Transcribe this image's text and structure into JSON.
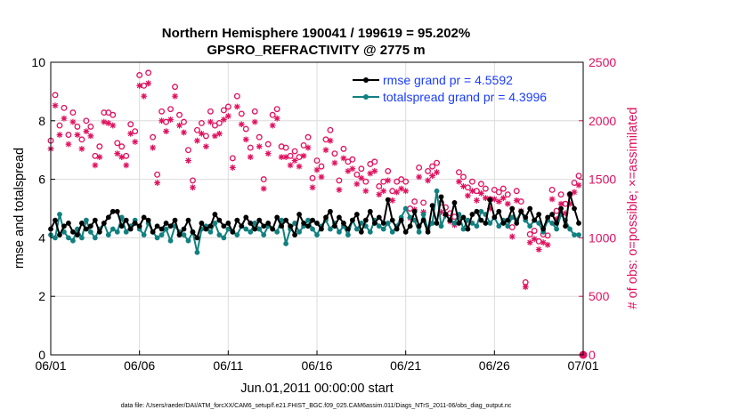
{
  "chart_data": {
    "type": "line",
    "title_line1": "Northern Hemisphere 190041 / 199619 = 95.202%",
    "title_line2": "GPSRO_REFRACTIVITY @ 2775 m",
    "xlabel": "Jun.01,2011 00:00:00 start",
    "ylabel_left": "rmse and totalspread",
    "ylabel_right": "# of obs: o=possible; ×=assimilated",
    "footnote": "data file: /Users/raeder/DAI/ATM_forcXX/CAM6_setup/f.e21.FHIST_BGC.f09_025.CAM6assim.011/Diags_NTrS_2011-06/obs_diag_output.nc",
    "x_range_days": [
      0,
      30
    ],
    "x_tick_labels": [
      "06/01",
      "06/06",
      "06/11",
      "06/16",
      "06/21",
      "06/26",
      "07/01"
    ],
    "x_tick_days": [
      0,
      5,
      10,
      15,
      20,
      25,
      30
    ],
    "ylim_left": [
      0,
      10
    ],
    "y_ticks_left": [
      "0",
      "2",
      "4",
      "6",
      "8",
      "10"
    ],
    "ylim_right": [
      0,
      2500
    ],
    "y_ticks_right": [
      "0",
      "500",
      "1000",
      "1500",
      "2000",
      "2500"
    ],
    "colors": {
      "rmse": "#000000",
      "spread": "#128080",
      "obs": "#e0115f",
      "legend_text": "#1a3cff",
      "grid": "#dcdcdc"
    },
    "series": [
      {
        "name": "rmse grand pr = 4.5592",
        "x_days": [
          0.0,
          0.25,
          0.5,
          0.75,
          1.0,
          1.25,
          1.5,
          1.75,
          2.0,
          2.25,
          2.5,
          2.75,
          3.0,
          3.25,
          3.5,
          3.75,
          4.0,
          4.25,
          4.5,
          4.75,
          5.0,
          5.25,
          5.5,
          5.75,
          6.0,
          6.25,
          6.5,
          6.75,
          7.0,
          7.25,
          7.5,
          7.75,
          8.0,
          8.25,
          8.5,
          8.75,
          9.0,
          9.25,
          9.5,
          9.75,
          10.0,
          10.25,
          10.5,
          10.75,
          11.0,
          11.25,
          11.5,
          11.75,
          12.0,
          12.25,
          12.5,
          12.75,
          13.0,
          13.25,
          13.5,
          13.75,
          14.0,
          14.25,
          14.5,
          14.75,
          15.0,
          15.25,
          15.5,
          15.75,
          16.0,
          16.25,
          16.5,
          16.75,
          17.0,
          17.25,
          17.5,
          17.75,
          18.0,
          18.25,
          18.5,
          18.75,
          19.0,
          19.25,
          19.5,
          19.75,
          20.0,
          20.25,
          20.5,
          20.75,
          21.0,
          21.25,
          21.5,
          21.75,
          22.0,
          22.25,
          22.5,
          22.75,
          23.0,
          23.25,
          23.5,
          23.75,
          24.0,
          24.25,
          24.5,
          24.75,
          25.0,
          25.25,
          25.5,
          25.75,
          26.0,
          26.25,
          26.5,
          26.75,
          27.0,
          27.25,
          27.5,
          27.75,
          28.0,
          28.25,
          28.5,
          28.75,
          29.0,
          29.25,
          29.5,
          29.75
        ],
        "values": [
          4.3,
          4.6,
          4.1,
          4.4,
          4.5,
          4.2,
          4.1,
          4.5,
          4.3,
          4.4,
          4.6,
          4.2,
          4.5,
          4.7,
          4.9,
          4.9,
          4.4,
          4.6,
          4.3,
          4.5,
          4.4,
          4.7,
          4.6,
          4.2,
          4.4,
          4.3,
          4.5,
          4.4,
          4.6,
          4.1,
          4.3,
          4.6,
          4.2,
          4.0,
          4.5,
          4.3,
          4.4,
          4.8,
          4.6,
          4.4,
          4.5,
          4.2,
          4.6,
          4.4,
          4.7,
          4.5,
          4.3,
          4.6,
          4.4,
          4.5,
          4.3,
          4.7,
          4.4,
          4.6,
          4.4,
          4.1,
          4.8,
          4.5,
          4.4,
          4.6,
          4.5,
          4.3,
          4.7,
          4.9,
          4.4,
          4.7,
          4.5,
          4.3,
          4.6,
          4.8,
          4.2,
          4.6,
          4.9,
          4.5,
          4.7,
          4.5,
          5.3,
          4.6,
          4.3,
          4.6,
          4.2,
          4.4,
          4.9,
          4.4,
          4.6,
          4.2,
          5.1,
          4.5,
          5.4,
          4.8,
          4.6,
          5.2,
          4.5,
          4.7,
          4.3,
          4.8,
          4.9,
          4.6,
          4.5,
          5.3,
          4.7,
          4.9,
          4.5,
          4.6,
          5.0,
          4.5,
          4.9,
          4.7,
          5.0,
          4.6,
          4.8,
          4.3,
          4.7,
          4.8,
          4.5,
          5.0,
          4.4,
          5.5,
          5.0,
          4.5
        ]
      },
      {
        "name": "totalspread grand pr = 4.3996",
        "x_days": [
          0.0,
          0.25,
          0.5,
          0.75,
          1.0,
          1.25,
          1.5,
          1.75,
          2.0,
          2.25,
          2.5,
          2.75,
          3.0,
          3.25,
          3.5,
          3.75,
          4.0,
          4.25,
          4.5,
          4.75,
          5.0,
          5.25,
          5.5,
          5.75,
          6.0,
          6.25,
          6.5,
          6.75,
          7.0,
          7.25,
          7.5,
          7.75,
          8.0,
          8.25,
          8.5,
          8.75,
          9.0,
          9.25,
          9.5,
          9.75,
          10.0,
          10.25,
          10.5,
          10.75,
          11.0,
          11.25,
          11.5,
          11.75,
          12.0,
          12.25,
          12.5,
          12.75,
          13.0,
          13.25,
          13.5,
          13.75,
          14.0,
          14.25,
          14.5,
          14.75,
          15.0,
          15.25,
          15.5,
          15.75,
          16.0,
          16.25,
          16.5,
          16.75,
          17.0,
          17.25,
          17.5,
          17.75,
          18.0,
          18.25,
          18.5,
          18.75,
          19.0,
          19.25,
          19.5,
          19.75,
          20.0,
          20.25,
          20.5,
          20.75,
          21.0,
          21.25,
          21.5,
          21.75,
          22.0,
          22.25,
          22.5,
          22.75,
          23.0,
          23.25,
          23.5,
          23.75,
          24.0,
          24.25,
          24.5,
          24.75,
          25.0,
          25.25,
          25.5,
          25.75,
          26.0,
          26.25,
          26.5,
          26.75,
          27.0,
          27.25,
          27.5,
          27.75,
          28.0,
          28.25,
          28.5,
          28.75,
          29.0,
          29.25,
          29.5,
          29.75
        ],
        "values": [
          4.1,
          4.0,
          4.8,
          4.2,
          4.0,
          3.9,
          4.3,
          4.0,
          4.6,
          4.2,
          4.0,
          4.3,
          4.5,
          4.1,
          4.3,
          4.2,
          4.7,
          4.2,
          4.4,
          4.6,
          4.3,
          4.1,
          4.5,
          4.2,
          4.0,
          4.1,
          4.3,
          3.9,
          4.4,
          4.2,
          4.1,
          3.9,
          4.2,
          3.5,
          4.3,
          4.4,
          4.2,
          4.5,
          4.1,
          4.0,
          4.3,
          4.2,
          4.1,
          4.4,
          4.3,
          4.2,
          4.5,
          4.3,
          4.1,
          4.4,
          4.3,
          4.2,
          4.6,
          3.8,
          4.3,
          4.5,
          4.2,
          4.4,
          4.6,
          4.3,
          4.1,
          4.4,
          4.6,
          4.3,
          4.5,
          4.2,
          4.4,
          4.1,
          4.6,
          4.3,
          4.5,
          4.4,
          4.2,
          4.6,
          4.4,
          4.3,
          4.5,
          4.2,
          4.4,
          4.7,
          5.0,
          4.7,
          4.6,
          4.2,
          4.8,
          4.3,
          4.5,
          5.6,
          4.4,
          4.8,
          4.6,
          4.5,
          4.8,
          4.3,
          4.6,
          4.5,
          4.4,
          4.9,
          4.8,
          4.5,
          4.7,
          4.4,
          4.6,
          4.4,
          4.7,
          4.6,
          4.9,
          4.6,
          4.4,
          4.6,
          4.5,
          4.2,
          4.6,
          4.5,
          4.3,
          4.8,
          4.6,
          4.3,
          4.1,
          4.1
        ]
      },
      {
        "name": "possible",
        "x_days": [
          0.0,
          0.25,
          0.5,
          0.75,
          1.0,
          1.25,
          1.5,
          1.75,
          2.0,
          2.25,
          2.5,
          2.75,
          3.0,
          3.25,
          3.5,
          3.75,
          4.0,
          4.25,
          4.5,
          4.75,
          5.0,
          5.25,
          5.5,
          5.75,
          6.0,
          6.25,
          6.5,
          6.75,
          7.0,
          7.25,
          7.5,
          7.75,
          8.0,
          8.25,
          8.5,
          8.75,
          9.0,
          9.25,
          9.5,
          9.75,
          10.0,
          10.25,
          10.5,
          10.75,
          11.0,
          11.25,
          11.5,
          11.75,
          12.0,
          12.25,
          12.5,
          12.75,
          13.0,
          13.25,
          13.5,
          13.75,
          14.0,
          14.25,
          14.5,
          14.75,
          15.0,
          15.25,
          15.5,
          15.75,
          16.0,
          16.25,
          16.5,
          16.75,
          17.0,
          17.25,
          17.5,
          17.75,
          18.0,
          18.25,
          18.5,
          18.75,
          19.0,
          19.25,
          19.5,
          19.75,
          20.0,
          20.25,
          20.5,
          20.75,
          21.0,
          21.25,
          21.5,
          21.75,
          22.0,
          22.25,
          22.5,
          22.75,
          23.0,
          23.25,
          23.5,
          23.75,
          24.0,
          24.25,
          24.5,
          24.75,
          25.0,
          25.25,
          25.5,
          25.75,
          26.0,
          26.25,
          26.5,
          26.75,
          27.0,
          27.25,
          27.5,
          27.75,
          28.0,
          28.25,
          28.5,
          28.75,
          29.0,
          29.25,
          29.5,
          29.75
        ],
        "values": [
          1830,
          2220,
          1960,
          2110,
          1880,
          2070,
          1950,
          1840,
          2000,
          1950,
          1700,
          1780,
          2070,
          2070,
          2050,
          1810,
          1780,
          1700,
          1970,
          1910,
          2390,
          2300,
          2410,
          1860,
          1540,
          2080,
          1990,
          2100,
          2290,
          2050,
          1990,
          1750,
          1490,
          1920,
          1980,
          1870,
          2080,
          1960,
          1980,
          2090,
          2120,
          1680,
          2210,
          2060,
          1930,
          1770,
          2080,
          1860,
          1500,
          1800,
          2050,
          2100,
          1780,
          1770,
          1700,
          1740,
          1690,
          1790,
          1860,
          1510,
          1660,
          1610,
          1840,
          1920,
          1720,
          1490,
          1760,
          1650,
          1670,
          1540,
          1590,
          1480,
          1630,
          1650,
          1440,
          1480,
          1570,
          1400,
          1480,
          1500,
          1480,
          1250,
          1310,
          1600,
          1300,
          1570,
          1610,
          1640,
          1300,
          1260,
          1210,
          1180,
          1560,
          1520,
          1430,
          1480,
          1400,
          1460,
          1420,
          1330,
          1410,
          1390,
          1420,
          1370,
          1090,
          1400,
          1310,
          620,
          1030,
          1060,
          970,
          1030,
          1020,
          1410,
          1230,
          1370,
          1290,
          1370,
          1470,
          1530
        ]
      },
      {
        "name": "assimilated",
        "x_days": [
          0.0,
          0.25,
          0.5,
          0.75,
          1.0,
          1.25,
          1.5,
          1.75,
          2.0,
          2.25,
          2.5,
          2.75,
          3.0,
          3.25,
          3.5,
          3.75,
          4.0,
          4.25,
          4.5,
          4.75,
          5.0,
          5.25,
          5.5,
          5.75,
          6.0,
          6.25,
          6.5,
          6.75,
          7.0,
          7.25,
          7.5,
          7.75,
          8.0,
          8.25,
          8.5,
          8.75,
          9.0,
          9.25,
          9.5,
          9.75,
          10.0,
          10.25,
          10.5,
          10.75,
          11.0,
          11.25,
          11.5,
          11.75,
          12.0,
          12.25,
          12.5,
          12.75,
          13.0,
          13.25,
          13.5,
          13.75,
          14.0,
          14.25,
          14.5,
          14.75,
          15.0,
          15.25,
          15.5,
          15.75,
          16.0,
          16.25,
          16.5,
          16.75,
          17.0,
          17.25,
          17.5,
          17.75,
          18.0,
          18.25,
          18.5,
          18.75,
          19.0,
          19.25,
          19.5,
          19.75,
          20.0,
          20.25,
          20.5,
          20.75,
          21.0,
          21.25,
          21.5,
          21.75,
          22.0,
          22.25,
          22.5,
          22.75,
          23.0,
          23.25,
          23.5,
          23.75,
          24.0,
          24.25,
          24.5,
          24.75,
          25.0,
          25.25,
          25.5,
          25.75,
          26.0,
          26.25,
          26.5,
          26.75,
          27.0,
          27.25,
          27.5,
          27.75,
          28.0,
          28.25,
          28.5,
          28.75,
          29.0,
          29.25,
          29.5,
          29.75
        ],
        "values": [
          1760,
          2130,
          1880,
          2020,
          1800,
          1990,
          1880,
          1760,
          1910,
          1870,
          1620,
          1690,
          1990,
          1980,
          1960,
          1720,
          1690,
          1620,
          1890,
          1820,
          2300,
          2210,
          2320,
          1770,
          1470,
          2000,
          1910,
          2010,
          2210,
          1960,
          1900,
          1660,
          1430,
          1830,
          1890,
          1780,
          1990,
          1870,
          1890,
          2010,
          2040,
          1600,
          2120,
          1970,
          1840,
          1690,
          1990,
          1780,
          1420,
          1720,
          1960,
          2020,
          1690,
          1690,
          1620,
          1660,
          1610,
          1700,
          1770,
          1430,
          1580,
          1520,
          1750,
          1830,
          1640,
          1410,
          1680,
          1570,
          1590,
          1460,
          1510,
          1400,
          1550,
          1570,
          1370,
          1400,
          1490,
          1320,
          1390,
          1420,
          1400,
          1170,
          1240,
          1520,
          1220,
          1490,
          1530,
          1560,
          1220,
          1190,
          1140,
          1110,
          1480,
          1440,
          1360,
          1400,
          1320,
          1380,
          1340,
          1250,
          1330,
          1310,
          1340,
          1290,
          1010,
          1320,
          1230,
          580,
          960,
          990,
          900,
          960,
          940,
          1330,
          1160,
          1290,
          1210,
          1290,
          1390,
          1450
        ]
      }
    ],
    "end_point": {
      "day": 30,
      "value": 0
    }
  }
}
